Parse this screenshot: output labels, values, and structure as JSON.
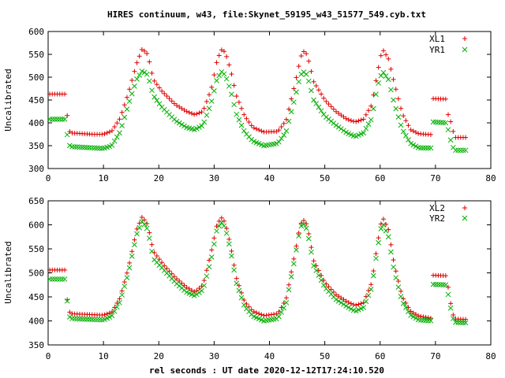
{
  "title": "HIRES continuum, w43, file:Skynet_59195_w43_51577_549.cyb.txt",
  "xlabel": "rel seconds : UT date 2020-12-12T17:24:10.520",
  "colors": {
    "red": "#e00000",
    "green": "#00b000"
  },
  "chart_data": [
    {
      "type": "scatter",
      "ylabel": "Uncalibrated",
      "xlim": [
        0,
        80
      ],
      "ylim": [
        300,
        600
      ],
      "xticks": [
        "0",
        "10",
        "20",
        "30",
        "40",
        "50",
        "60",
        "70",
        "80"
      ],
      "yticks": [
        "300",
        "350",
        "400",
        "450",
        "500",
        "550",
        "600"
      ],
      "legend_position": "top-right",
      "series": [
        {
          "name": "XL1",
          "marker": "plus",
          "color": "#e00000",
          "baseline": [
            [
              0.3,
              463
            ],
            [
              3.0,
              463
            ],
            [
              3.3,
              442
            ],
            [
              3.6,
              390
            ],
            [
              4.0,
              378
            ],
            [
              8.0,
              375
            ],
            [
              10.0,
              375
            ],
            [
              11.5,
              382
            ],
            [
              13.0,
              410
            ],
            [
              14.5,
              465
            ],
            [
              16.0,
              530
            ],
            [
              17.0,
              562
            ],
            [
              18.0,
              550
            ],
            [
              19.0,
              495
            ],
            [
              20.5,
              470
            ],
            [
              23.0,
              440
            ],
            [
              25.0,
              425
            ],
            [
              26.5,
              418
            ],
            [
              28.0,
              425
            ],
            [
              29.5,
              475
            ],
            [
              30.5,
              535
            ],
            [
              31.3,
              560
            ],
            [
              32.0,
              555
            ],
            [
              33.0,
              515
            ],
            [
              34.0,
              460
            ],
            [
              35.5,
              415
            ],
            [
              37.0,
              390
            ],
            [
              39.0,
              380
            ],
            [
              41.5,
              381
            ],
            [
              43.0,
              405
            ],
            [
              44.5,
              480
            ],
            [
              45.5,
              535
            ],
            [
              46.0,
              558
            ],
            [
              46.8,
              550
            ],
            [
              48.0,
              490
            ],
            [
              50.0,
              450
            ],
            [
              52.0,
              425
            ],
            [
              54.0,
              408
            ],
            [
              55.5,
              402
            ],
            [
              57.0,
              408
            ],
            [
              58.5,
              440
            ],
            [
              59.5,
              510
            ],
            [
              60.2,
              550
            ],
            [
              60.6,
              558
            ],
            [
              61.5,
              540
            ],
            [
              62.5,
              490
            ],
            [
              64.0,
              420
            ],
            [
              65.5,
              385
            ],
            [
              67.0,
              376
            ],
            [
              69.5,
              374
            ],
            [
              69.6,
              453
            ],
            [
              72.0,
              452
            ],
            [
              72.3,
              418
            ],
            [
              72.7,
              405
            ],
            [
              73.0,
              390
            ],
            [
              73.5,
              368
            ],
            [
              75.8,
              368
            ]
          ],
          "step": 0.45
        },
        {
          "name": "YR1",
          "marker": "cross",
          "color": "#00b000",
          "baseline": [
            [
              0.3,
              408
            ],
            [
              3.0,
              408
            ],
            [
              3.3,
              390
            ],
            [
              3.6,
              358
            ],
            [
              4.0,
              348
            ],
            [
              10.0,
              344
            ],
            [
              11.5,
              350
            ],
            [
              13.0,
              380
            ],
            [
              14.5,
              440
            ],
            [
              16.0,
              495
            ],
            [
              17.0,
              514
            ],
            [
              18.0,
              505
            ],
            [
              19.0,
              460
            ],
            [
              20.5,
              435
            ],
            [
              23.0,
              405
            ],
            [
              25.0,
              390
            ],
            [
              26.5,
              385
            ],
            [
              28.0,
              395
            ],
            [
              29.5,
              445
            ],
            [
              30.5,
              495
            ],
            [
              31.3,
              512
            ],
            [
              32.0,
              505
            ],
            [
              33.0,
              470
            ],
            [
              34.0,
              420
            ],
            [
              35.5,
              380
            ],
            [
              37.0,
              360
            ],
            [
              39.0,
              350
            ],
            [
              41.5,
              355
            ],
            [
              43.0,
              380
            ],
            [
              44.5,
              450
            ],
            [
              45.5,
              500
            ],
            [
              46.0,
              513
            ],
            [
              46.8,
              505
            ],
            [
              48.0,
              450
            ],
            [
              50.0,
              415
            ],
            [
              52.0,
              395
            ],
            [
              54.0,
              378
            ],
            [
              55.5,
              370
            ],
            [
              57.0,
              378
            ],
            [
              58.5,
              410
            ],
            [
              59.5,
              480
            ],
            [
              60.2,
              505
            ],
            [
              60.6,
              510
            ],
            [
              61.5,
              495
            ],
            [
              62.5,
              445
            ],
            [
              64.0,
              385
            ],
            [
              65.5,
              355
            ],
            [
              67.0,
              345
            ],
            [
              69.5,
              345
            ],
            [
              69.6,
              402
            ],
            [
              72.0,
              400
            ],
            [
              72.3,
              385
            ],
            [
              72.7,
              365
            ],
            [
              73.0,
              350
            ],
            [
              73.5,
              340
            ],
            [
              75.8,
              340
            ]
          ],
          "step": 0.45
        }
      ]
    },
    {
      "type": "scatter",
      "ylabel": "Uncalibrated",
      "xlim": [
        0,
        80
      ],
      "ylim": [
        350,
        650
      ],
      "xticks": [
        "0",
        "10",
        "20",
        "30",
        "40",
        "50",
        "60",
        "70",
        "80"
      ],
      "yticks": [
        "350",
        "400",
        "450",
        "500",
        "550",
        "600",
        "650"
      ],
      "legend_position": "top-right",
      "series": [
        {
          "name": "XL2",
          "marker": "plus",
          "color": "#e00000",
          "baseline": [
            [
              0.3,
              506
            ],
            [
              3.0,
              506
            ],
            [
              3.3,
              460
            ],
            [
              3.6,
              428
            ],
            [
              4.0,
              415
            ],
            [
              10.0,
              412
            ],
            [
              11.5,
              418
            ],
            [
              13.0,
              448
            ],
            [
              14.5,
              510
            ],
            [
              16.0,
              590
            ],
            [
              17.0,
              617
            ],
            [
              18.0,
              600
            ],
            [
              19.0,
              545
            ],
            [
              21.0,
              515
            ],
            [
              23.0,
              490
            ],
            [
              25.0,
              470
            ],
            [
              26.5,
              460
            ],
            [
              28.0,
              475
            ],
            [
              29.5,
              545
            ],
            [
              30.5,
              600
            ],
            [
              31.3,
              615
            ],
            [
              32.0,
              605
            ],
            [
              33.0,
              555
            ],
            [
              34.0,
              490
            ],
            [
              35.5,
              440
            ],
            [
              37.0,
              420
            ],
            [
              39.0,
              411
            ],
            [
              41.5,
              415
            ],
            [
              43.0,
              445
            ],
            [
              44.5,
              535
            ],
            [
              45.5,
              595
            ],
            [
              46.0,
              612
            ],
            [
              46.8,
              600
            ],
            [
              48.0,
              525
            ],
            [
              50.0,
              480
            ],
            [
              52.0,
              455
            ],
            [
              54.0,
              440
            ],
            [
              55.5,
              432
            ],
            [
              57.0,
              438
            ],
            [
              58.5,
              480
            ],
            [
              59.5,
              560
            ],
            [
              60.2,
              605
            ],
            [
              60.6,
              612
            ],
            [
              61.5,
              590
            ],
            [
              62.5,
              520
            ],
            [
              64.0,
              450
            ],
            [
              65.5,
              420
            ],
            [
              67.0,
              410
            ],
            [
              69.5,
              405
            ],
            [
              69.6,
              495
            ],
            [
              72.0,
              494
            ],
            [
              72.3,
              470
            ],
            [
              72.7,
              440
            ],
            [
              73.0,
              418
            ],
            [
              73.5,
              404
            ],
            [
              75.8,
              403
            ]
          ],
          "step": 0.45
        },
        {
          "name": "YR2",
          "marker": "cross",
          "color": "#00b000",
          "baseline": [
            [
              0.3,
              487
            ],
            [
              3.0,
              487
            ],
            [
              3.3,
              465
            ],
            [
              3.6,
              418
            ],
            [
              4.0,
              405
            ],
            [
              10.0,
              402
            ],
            [
              11.5,
              410
            ],
            [
              13.0,
              440
            ],
            [
              14.5,
              500
            ],
            [
              16.0,
              580
            ],
            [
              17.0,
              608
            ],
            [
              18.0,
              590
            ],
            [
              19.0,
              530
            ],
            [
              21.0,
              505
            ],
            [
              23.0,
              480
            ],
            [
              25.0,
              460
            ],
            [
              26.5,
              452
            ],
            [
              28.0,
              465
            ],
            [
              29.5,
              530
            ],
            [
              30.5,
              590
            ],
            [
              31.3,
              605
            ],
            [
              32.0,
              595
            ],
            [
              33.0,
              545
            ],
            [
              34.0,
              480
            ],
            [
              35.5,
              430
            ],
            [
              37.0,
              410
            ],
            [
              39.0,
              400
            ],
            [
              41.5,
              405
            ],
            [
              43.0,
              435
            ],
            [
              44.5,
              525
            ],
            [
              45.5,
              590
            ],
            [
              46.0,
              605
            ],
            [
              46.8,
              590
            ],
            [
              48.0,
              515
            ],
            [
              50.0,
              470
            ],
            [
              52.0,
              445
            ],
            [
              54.0,
              430
            ],
            [
              55.5,
              420
            ],
            [
              57.0,
              428
            ],
            [
              58.5,
              470
            ],
            [
              59.5,
              550
            ],
            [
              60.2,
              595
            ],
            [
              60.6,
              600
            ],
            [
              61.5,
              575
            ],
            [
              62.5,
              505
            ],
            [
              64.0,
              440
            ],
            [
              65.5,
              412
            ],
            [
              67.0,
              402
            ],
            [
              69.5,
              400
            ],
            [
              69.6,
              476
            ],
            [
              72.0,
              475
            ],
            [
              72.3,
              455
            ],
            [
              72.7,
              430
            ],
            [
              73.0,
              410
            ],
            [
              73.5,
              397
            ],
            [
              75.8,
              396
            ]
          ],
          "step": 0.45
        }
      ]
    }
  ]
}
